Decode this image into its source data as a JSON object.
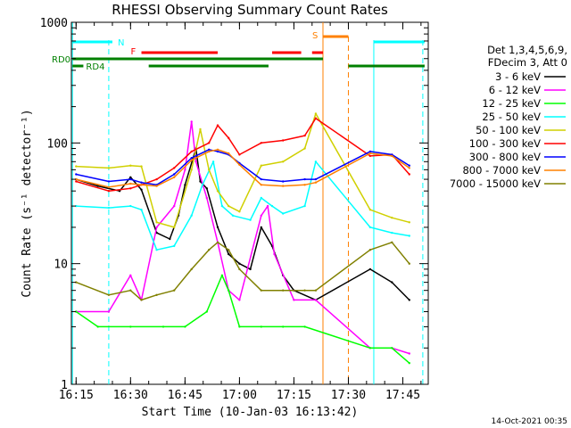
{
  "chart_data": {
    "type": "line",
    "title": "RHESSI Observing Summary Count Rates",
    "xlabel": "Start Time (10-Jan-03 16:13:42)",
    "ylabel": "Count Rate (s⁻¹ detector⁻¹)",
    "y_scale": "log",
    "ylim": [
      1,
      1000
    ],
    "xlim_minutes": [
      "16:13:42",
      "17:52:00"
    ],
    "x_ticks": [
      "16:15",
      "16:30",
      "16:45",
      "17:00",
      "17:15",
      "17:30",
      "17:45"
    ],
    "y_ticks": [
      "1",
      "10",
      "100",
      "1000"
    ],
    "legend_header": [
      "Det 1,3,4,5,6,9,",
      "FDecim 3, Att 0"
    ],
    "series": [
      {
        "name": "3 - 6 keV",
        "color": "#000000",
        "points": [
          [
            16.25,
            50
          ],
          [
            16.35,
            44
          ],
          [
            16.45,
            40
          ],
          [
            16.5,
            52
          ],
          [
            16.55,
            41
          ],
          [
            16.62,
            18
          ],
          [
            16.68,
            16
          ],
          [
            16.72,
            25
          ],
          [
            16.75,
            45
          ],
          [
            16.8,
            90
          ],
          [
            16.82,
            48
          ],
          [
            16.85,
            42
          ],
          [
            16.9,
            20
          ],
          [
            16.95,
            12
          ],
          [
            17.0,
            10
          ],
          [
            17.05,
            9
          ],
          [
            17.1,
            20
          ],
          [
            17.15,
            14
          ],
          [
            17.2,
            8
          ],
          [
            17.25,
            6
          ],
          [
            17.35,
            5
          ],
          [
            17.6,
            9
          ],
          [
            17.7,
            7
          ],
          [
            17.78,
            5
          ]
        ]
      },
      {
        "name": "6 - 12 keV",
        "color": "#ff00ff",
        "points": [
          [
            16.25,
            4
          ],
          [
            16.4,
            4
          ],
          [
            16.5,
            8
          ],
          [
            16.55,
            5
          ],
          [
            16.62,
            20
          ],
          [
            16.7,
            30
          ],
          [
            16.75,
            60
          ],
          [
            16.78,
            150
          ],
          [
            16.8,
            70
          ],
          [
            16.85,
            35
          ],
          [
            16.9,
            15
          ],
          [
            16.95,
            6
          ],
          [
            17.0,
            5
          ],
          [
            17.1,
            25
          ],
          [
            17.13,
            30
          ],
          [
            17.16,
            12
          ],
          [
            17.25,
            5
          ],
          [
            17.35,
            5
          ],
          [
            17.6,
            2
          ],
          [
            17.7,
            2
          ],
          [
            17.78,
            1.8
          ]
        ]
      },
      {
        "name": "12 - 25 keV",
        "color": "#00ff00",
        "points": [
          [
            16.25,
            4
          ],
          [
            16.35,
            3
          ],
          [
            16.5,
            3
          ],
          [
            16.65,
            3
          ],
          [
            16.75,
            3
          ],
          [
            16.85,
            4
          ],
          [
            16.92,
            8
          ],
          [
            16.95,
            6
          ],
          [
            17.0,
            3
          ],
          [
            17.1,
            3
          ],
          [
            17.2,
            3
          ],
          [
            17.3,
            3
          ],
          [
            17.6,
            2
          ],
          [
            17.7,
            2
          ],
          [
            17.78,
            1.5
          ]
        ]
      },
      {
        "name": "25 - 50 keV",
        "color": "#00ffff",
        "points": [
          [
            16.25,
            30
          ],
          [
            16.4,
            29
          ],
          [
            16.5,
            30
          ],
          [
            16.55,
            28
          ],
          [
            16.62,
            13
          ],
          [
            16.7,
            14
          ],
          [
            16.78,
            25
          ],
          [
            16.83,
            45
          ],
          [
            16.88,
            70
          ],
          [
            16.92,
            30
          ],
          [
            16.97,
            25
          ],
          [
            17.05,
            23
          ],
          [
            17.1,
            35
          ],
          [
            17.15,
            30
          ],
          [
            17.2,
            26
          ],
          [
            17.3,
            30
          ],
          [
            17.35,
            70
          ],
          [
            17.6,
            20
          ],
          [
            17.7,
            18
          ],
          [
            17.78,
            17
          ]
        ]
      },
      {
        "name": "50 - 100 keV",
        "color": "#d0d000",
        "points": [
          [
            16.25,
            64
          ],
          [
            16.4,
            62
          ],
          [
            16.5,
            65
          ],
          [
            16.55,
            64
          ],
          [
            16.62,
            22
          ],
          [
            16.7,
            20
          ],
          [
            16.78,
            60
          ],
          [
            16.82,
            130
          ],
          [
            16.86,
            60
          ],
          [
            16.9,
            40
          ],
          [
            16.95,
            30
          ],
          [
            17.0,
            27
          ],
          [
            17.1,
            65
          ],
          [
            17.2,
            70
          ],
          [
            17.3,
            90
          ],
          [
            17.35,
            175
          ],
          [
            17.6,
            28
          ],
          [
            17.7,
            24
          ],
          [
            17.78,
            22
          ]
        ]
      },
      {
        "name": "100 - 300 keV",
        "color": "#ff0000",
        "points": [
          [
            16.25,
            48
          ],
          [
            16.4,
            40
          ],
          [
            16.5,
            42
          ],
          [
            16.55,
            45
          ],
          [
            16.62,
            50
          ],
          [
            16.7,
            62
          ],
          [
            16.78,
            85
          ],
          [
            16.86,
            100
          ],
          [
            16.9,
            140
          ],
          [
            16.95,
            110
          ],
          [
            17.0,
            80
          ],
          [
            17.1,
            100
          ],
          [
            17.2,
            105
          ],
          [
            17.3,
            115
          ],
          [
            17.35,
            160
          ],
          [
            17.6,
            78
          ],
          [
            17.7,
            80
          ],
          [
            17.78,
            55
          ]
        ]
      },
      {
        "name": "300 - 800 keV",
        "color": "#0000ff",
        "points": [
          [
            16.25,
            55
          ],
          [
            16.4,
            48
          ],
          [
            16.5,
            50
          ],
          [
            16.55,
            47
          ],
          [
            16.62,
            45
          ],
          [
            16.7,
            55
          ],
          [
            16.78,
            75
          ],
          [
            16.86,
            88
          ],
          [
            16.9,
            85
          ],
          [
            16.95,
            80
          ],
          [
            17.0,
            68
          ],
          [
            17.1,
            50
          ],
          [
            17.2,
            48
          ],
          [
            17.3,
            50
          ],
          [
            17.35,
            50
          ],
          [
            17.6,
            85
          ],
          [
            17.7,
            80
          ],
          [
            17.78,
            65
          ]
        ]
      },
      {
        "name": "800 - 7000 keV",
        "color": "#ff8000",
        "points": [
          [
            16.25,
            50
          ],
          [
            16.4,
            43
          ],
          [
            16.5,
            46
          ],
          [
            16.55,
            45
          ],
          [
            16.62,
            44
          ],
          [
            16.7,
            52
          ],
          [
            16.78,
            72
          ],
          [
            16.86,
            85
          ],
          [
            16.9,
            88
          ],
          [
            16.95,
            82
          ],
          [
            17.0,
            66
          ],
          [
            17.1,
            45
          ],
          [
            17.2,
            44
          ],
          [
            17.3,
            45
          ],
          [
            17.35,
            47
          ],
          [
            17.6,
            82
          ],
          [
            17.7,
            78
          ],
          [
            17.78,
            62
          ]
        ]
      },
      {
        "name": "7000 - 15000 keV",
        "color": "#808000",
        "points": [
          [
            16.25,
            7
          ],
          [
            16.4,
            5.5
          ],
          [
            16.5,
            6
          ],
          [
            16.55,
            5
          ],
          [
            16.62,
            5.5
          ],
          [
            16.7,
            6
          ],
          [
            16.78,
            9
          ],
          [
            16.86,
            13
          ],
          [
            16.9,
            15
          ],
          [
            16.95,
            13
          ],
          [
            17.0,
            9
          ],
          [
            17.1,
            6
          ],
          [
            17.2,
            6
          ],
          [
            17.3,
            6
          ],
          [
            17.35,
            6
          ],
          [
            17.6,
            13
          ],
          [
            17.7,
            15
          ],
          [
            17.78,
            10
          ]
        ]
      }
    ],
    "flags": {
      "N_label": "N",
      "F_label": "F",
      "S_label": "S",
      "RD0_label": "RD0",
      "RD4_label": "RD4"
    },
    "legend_placement": "right",
    "grid": false
  },
  "timestamp": "14-Oct-2021 00:35"
}
